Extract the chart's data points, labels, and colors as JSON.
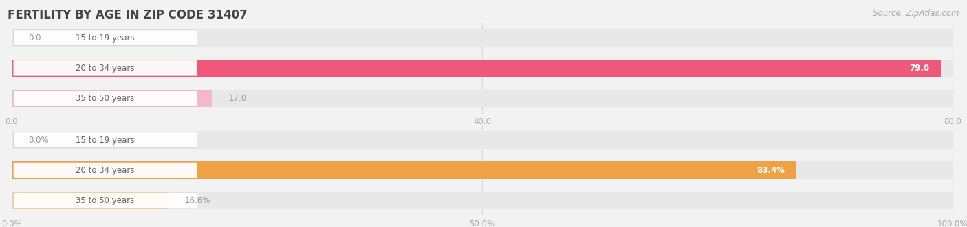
{
  "title": "FERTILITY BY AGE IN ZIP CODE 31407",
  "source": "Source: ZipAtlas.com",
  "background_color": "#f2f2f2",
  "top_chart": {
    "categories": [
      "15 to 19 years",
      "20 to 34 years",
      "35 to 50 years"
    ],
    "values": [
      0.0,
      79.0,
      17.0
    ],
    "max_value": 80.0,
    "x_ticks": [
      0.0,
      40.0,
      80.0
    ],
    "x_tick_labels": [
      "0.0",
      "40.0",
      "80.0"
    ],
    "bar_color_dark": "#f0587a",
    "bar_color_light": "#f5b8c8",
    "label_inside_color": "#ffffff",
    "label_outside_color": "#999999",
    "value_labels": [
      "0.0",
      "79.0",
      "17.0"
    ],
    "label_inside": [
      false,
      true,
      false
    ]
  },
  "bottom_chart": {
    "categories": [
      "15 to 19 years",
      "20 to 34 years",
      "35 to 50 years"
    ],
    "values": [
      0.0,
      83.4,
      16.6
    ],
    "max_value": 100.0,
    "x_ticks": [
      0.0,
      50.0,
      100.0
    ],
    "x_tick_labels": [
      "0.0%",
      "50.0%",
      "100.0%"
    ],
    "bar_color_dark": "#f0a045",
    "bar_color_light": "#f8cfa0",
    "label_inside_color": "#ffffff",
    "label_outside_color": "#999999",
    "value_labels": [
      "0.0%",
      "83.4%",
      "16.6%"
    ],
    "label_inside": [
      false,
      true,
      false
    ]
  },
  "label_box_bg": "#ffffff",
  "label_text_color": "#666666",
  "tick_color": "#aaaaaa",
  "grid_color": "#d8d8d8",
  "bar_height": 0.58,
  "bar_track_color": "#e8e8e8",
  "title_color": "#444444",
  "title_fontsize": 12,
  "source_fontsize": 8.5,
  "tick_fontsize": 8.5,
  "label_fontsize": 8.5,
  "value_fontsize": 8.5
}
